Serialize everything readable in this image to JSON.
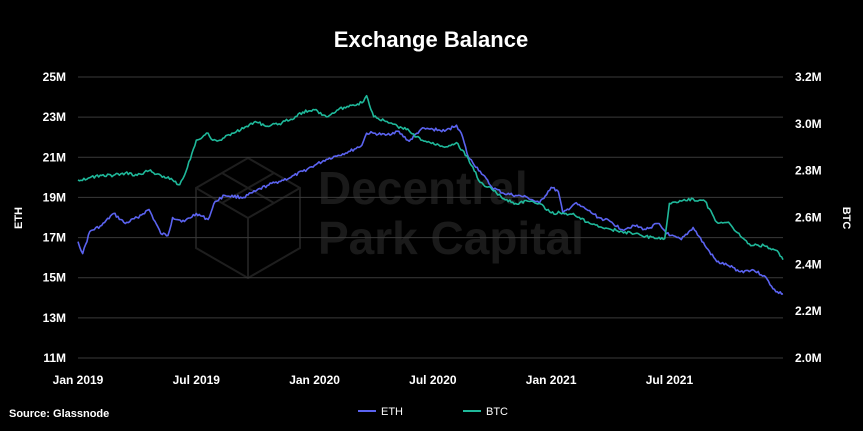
{
  "chart_data": {
    "type": "line",
    "title": "Exchange Balance",
    "source": "Source: Glassnode",
    "watermark": [
      "Decentral",
      "Park Capital"
    ],
    "y_left": {
      "label": "ETH",
      "lim": [
        11,
        25
      ],
      "ticks": [
        11,
        13,
        15,
        17,
        19,
        21,
        23,
        25
      ],
      "tick_labels": [
        "11M",
        "13M",
        "15M",
        "17M",
        "19M",
        "21M",
        "23M",
        "25M"
      ]
    },
    "y_right": {
      "label": "BTC",
      "lim": [
        2.0,
        3.2
      ],
      "ticks": [
        2.0,
        2.2,
        2.4,
        2.6,
        2.8,
        3.0,
        3.2
      ],
      "tick_labels": [
        "2.0M",
        "2.2M",
        "2.4M",
        "2.6M",
        "2.8M",
        "3.0M",
        "3.2M"
      ]
    },
    "x_axis": {
      "lim": [
        2019.0,
        2021.98
      ],
      "ticks": [
        2019.0,
        2019.5,
        2020.0,
        2020.5,
        2021.0,
        2021.5
      ],
      "tick_labels": [
        "Jan 2019",
        "Jul 2019",
        "Jan 2020",
        "Jul 2020",
        "Jan 2021",
        "Jul 2021"
      ]
    },
    "grid": "horizontal",
    "legend": "bottom-center",
    "series": [
      {
        "name": "ETH",
        "axis": "left",
        "color": "#5b63f0",
        "x": [
          2019.0,
          2019.02,
          2019.05,
          2019.1,
          2019.15,
          2019.2,
          2019.25,
          2019.3,
          2019.35,
          2019.38,
          2019.4,
          2019.45,
          2019.5,
          2019.55,
          2019.58,
          2019.62,
          2019.7,
          2019.75,
          2019.8,
          2019.85,
          2019.9,
          2019.95,
          2020.0,
          2020.05,
          2020.1,
          2020.15,
          2020.2,
          2020.22,
          2020.25,
          2020.3,
          2020.35,
          2020.4,
          2020.45,
          2020.5,
          2020.55,
          2020.6,
          2020.62,
          2020.65,
          2020.7,
          2020.75,
          2020.8,
          2020.85,
          2020.9,
          2020.95,
          2021.0,
          2021.03,
          2021.05,
          2021.1,
          2021.15,
          2021.2,
          2021.25,
          2021.3,
          2021.35,
          2021.4,
          2021.45,
          2021.5,
          2021.55,
          2021.6,
          2021.65,
          2021.7,
          2021.75,
          2021.8,
          2021.85,
          2021.9,
          2021.95,
          2021.98
        ],
        "values": [
          16.8,
          16.2,
          17.3,
          17.6,
          18.2,
          17.7,
          18.0,
          18.4,
          17.2,
          17.1,
          18.0,
          17.8,
          18.2,
          17.9,
          18.8,
          19.1,
          19.0,
          19.3,
          19.6,
          19.8,
          20.0,
          20.3,
          20.6,
          20.9,
          21.1,
          21.3,
          21.6,
          22.2,
          22.2,
          22.1,
          22.3,
          21.8,
          22.4,
          22.4,
          22.3,
          22.6,
          22.2,
          21.0,
          20.3,
          19.5,
          19.2,
          19.1,
          19.0,
          18.7,
          19.5,
          19.3,
          18.2,
          18.7,
          18.4,
          18.0,
          17.8,
          17.4,
          17.6,
          17.4,
          17.7,
          17.1,
          16.9,
          17.5,
          16.6,
          15.8,
          15.6,
          15.3,
          15.4,
          15.1,
          14.3,
          14.2
        ]
      },
      {
        "name": "BTC",
        "axis": "right",
        "color": "#1fb89a",
        "x": [
          2019.0,
          2019.05,
          2019.1,
          2019.15,
          2019.2,
          2019.25,
          2019.3,
          2019.35,
          2019.4,
          2019.43,
          2019.45,
          2019.5,
          2019.55,
          2019.57,
          2019.6,
          2019.65,
          2019.7,
          2019.75,
          2019.8,
          2019.85,
          2019.9,
          2019.95,
          2020.0,
          2020.05,
          2020.1,
          2020.15,
          2020.2,
          2020.22,
          2020.25,
          2020.3,
          2020.35,
          2020.4,
          2020.45,
          2020.5,
          2020.55,
          2020.6,
          2020.65,
          2020.7,
          2020.75,
          2020.8,
          2020.85,
          2020.9,
          2020.95,
          2021.0,
          2021.05,
          2021.1,
          2021.15,
          2021.2,
          2021.25,
          2021.3,
          2021.35,
          2021.4,
          2021.45,
          2021.48,
          2021.5,
          2021.55,
          2021.6,
          2021.62,
          2021.65,
          2021.7,
          2021.75,
          2021.8,
          2021.85,
          2021.9,
          2021.95,
          2021.98
        ],
        "values": [
          2.76,
          2.77,
          2.78,
          2.78,
          2.79,
          2.78,
          2.8,
          2.78,
          2.76,
          2.74,
          2.78,
          2.93,
          2.96,
          2.93,
          2.93,
          2.96,
          2.98,
          3.01,
          2.99,
          3.0,
          3.02,
          3.05,
          3.06,
          3.03,
          3.06,
          3.08,
          3.09,
          3.12,
          3.03,
          3.01,
          2.99,
          2.97,
          2.93,
          2.92,
          2.9,
          2.92,
          2.85,
          2.75,
          2.72,
          2.68,
          2.66,
          2.67,
          2.66,
          2.62,
          2.62,
          2.61,
          2.58,
          2.56,
          2.55,
          2.54,
          2.53,
          2.52,
          2.51,
          2.51,
          2.66,
          2.67,
          2.68,
          2.67,
          2.67,
          2.58,
          2.58,
          2.52,
          2.48,
          2.48,
          2.46,
          2.42
        ]
      }
    ]
  }
}
